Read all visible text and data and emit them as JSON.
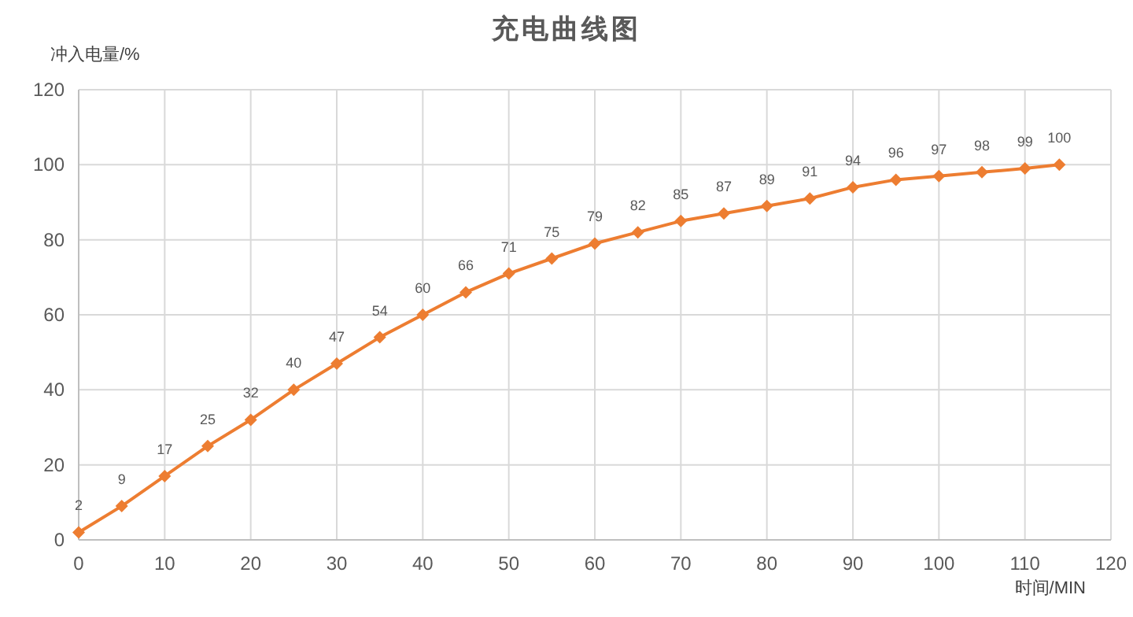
{
  "chart_data": {
    "type": "line",
    "title": "充电曲线图",
    "xlabel": "时间/MIN",
    "ylabel": "冲入电量/%",
    "x": [
      0,
      5,
      10,
      15,
      20,
      25,
      30,
      35,
      40,
      45,
      50,
      55,
      60,
      65,
      70,
      75,
      80,
      85,
      90,
      95,
      100,
      105,
      110,
      114
    ],
    "series": [
      {
        "color": "#ed7d31",
        "values": [
          2,
          9,
          17,
          25,
          32,
          40,
          47,
          54,
          60,
          66,
          71,
          75,
          79,
          82,
          85,
          87,
          89,
          91,
          94,
          96,
          97,
          98,
          99,
          100
        ]
      }
    ],
    "xlim": [
      0,
      120
    ],
    "xticks": [
      0,
      10,
      20,
      30,
      40,
      50,
      60,
      70,
      80,
      90,
      100,
      110,
      120
    ],
    "ylim": [
      0,
      120
    ],
    "yticks": [
      0,
      20,
      40,
      60,
      80,
      100,
      120
    ],
    "grid": true,
    "marker": "diamond",
    "line_style": "solid",
    "data_labels": true
  }
}
